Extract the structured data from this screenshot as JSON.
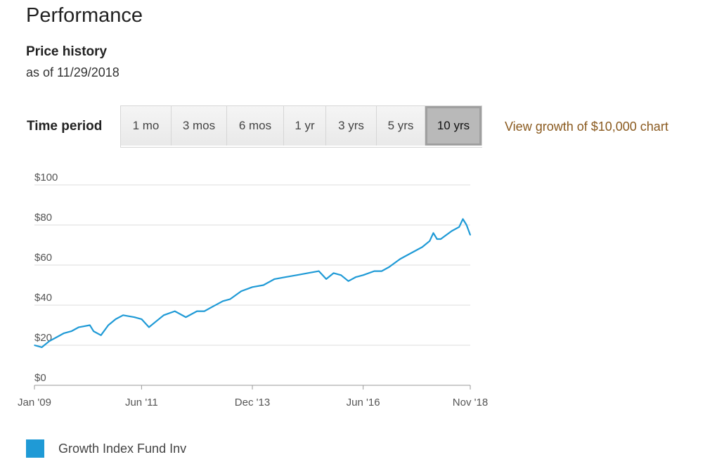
{
  "header": {
    "title": "Performance",
    "subtitle": "Price history",
    "as_of": "as of 11/29/2018"
  },
  "controls": {
    "label": "Time period",
    "tabs": [
      {
        "label": "1 mo"
      },
      {
        "label": "3 mos"
      },
      {
        "label": "6 mos"
      },
      {
        "label": "1 yr"
      },
      {
        "label": "3 yrs"
      },
      {
        "label": "5 yrs"
      },
      {
        "label": "10 yrs",
        "active": true
      }
    ],
    "growth_link": "View growth of $10,000 chart"
  },
  "chart_data": {
    "type": "line",
    "title": "",
    "xlabel": "",
    "ylabel": "",
    "ylim": [
      0,
      100
    ],
    "yticks": [
      0,
      20,
      40,
      60,
      80,
      100
    ],
    "ytick_labels": [
      "$0",
      "$20",
      "$40",
      "$60",
      "$80",
      "$100"
    ],
    "xlim": [
      "2009-01",
      "2018-11"
    ],
    "xticks": [
      "2009-01",
      "2011-06",
      "2013-12",
      "2016-06",
      "2018-11"
    ],
    "xtick_labels": [
      "Jan '09",
      "Jun '11",
      "Dec '13",
      "Jun '16",
      "Nov '18"
    ],
    "grid": true,
    "legend_position": "bottom-left",
    "series": [
      {
        "name": "Growth Index Fund Inv",
        "color": "#1f9ad6",
        "x": [
          "2009-01",
          "2009-03",
          "2009-05",
          "2009-07",
          "2009-09",
          "2009-11",
          "2010-01",
          "2010-04",
          "2010-05",
          "2010-07",
          "2010-09",
          "2010-11",
          "2011-01",
          "2011-04",
          "2011-06",
          "2011-08",
          "2011-10",
          "2011-12",
          "2012-03",
          "2012-06",
          "2012-09",
          "2012-11",
          "2013-01",
          "2013-04",
          "2013-06",
          "2013-09",
          "2013-12",
          "2014-03",
          "2014-06",
          "2014-09",
          "2014-12",
          "2015-03",
          "2015-06",
          "2015-08",
          "2015-10",
          "2015-12",
          "2016-02",
          "2016-04",
          "2016-06",
          "2016-09",
          "2016-11",
          "2017-01",
          "2017-04",
          "2017-07",
          "2017-10",
          "2017-12",
          "2018-01",
          "2018-02",
          "2018-03",
          "2018-06",
          "2018-08",
          "2018-09",
          "2018-10",
          "2018-11"
        ],
        "y": [
          20,
          19,
          22,
          24,
          26,
          27,
          29,
          30,
          27,
          25,
          30,
          33,
          35,
          34,
          33,
          29,
          32,
          35,
          37,
          34,
          37,
          37,
          39,
          42,
          43,
          47,
          49,
          50,
          53,
          54,
          55,
          56,
          57,
          53,
          56,
          55,
          52,
          54,
          55,
          57,
          57,
          59,
          63,
          66,
          69,
          72,
          76,
          73,
          73,
          77,
          79,
          83,
          80,
          75
        ]
      }
    ]
  }
}
